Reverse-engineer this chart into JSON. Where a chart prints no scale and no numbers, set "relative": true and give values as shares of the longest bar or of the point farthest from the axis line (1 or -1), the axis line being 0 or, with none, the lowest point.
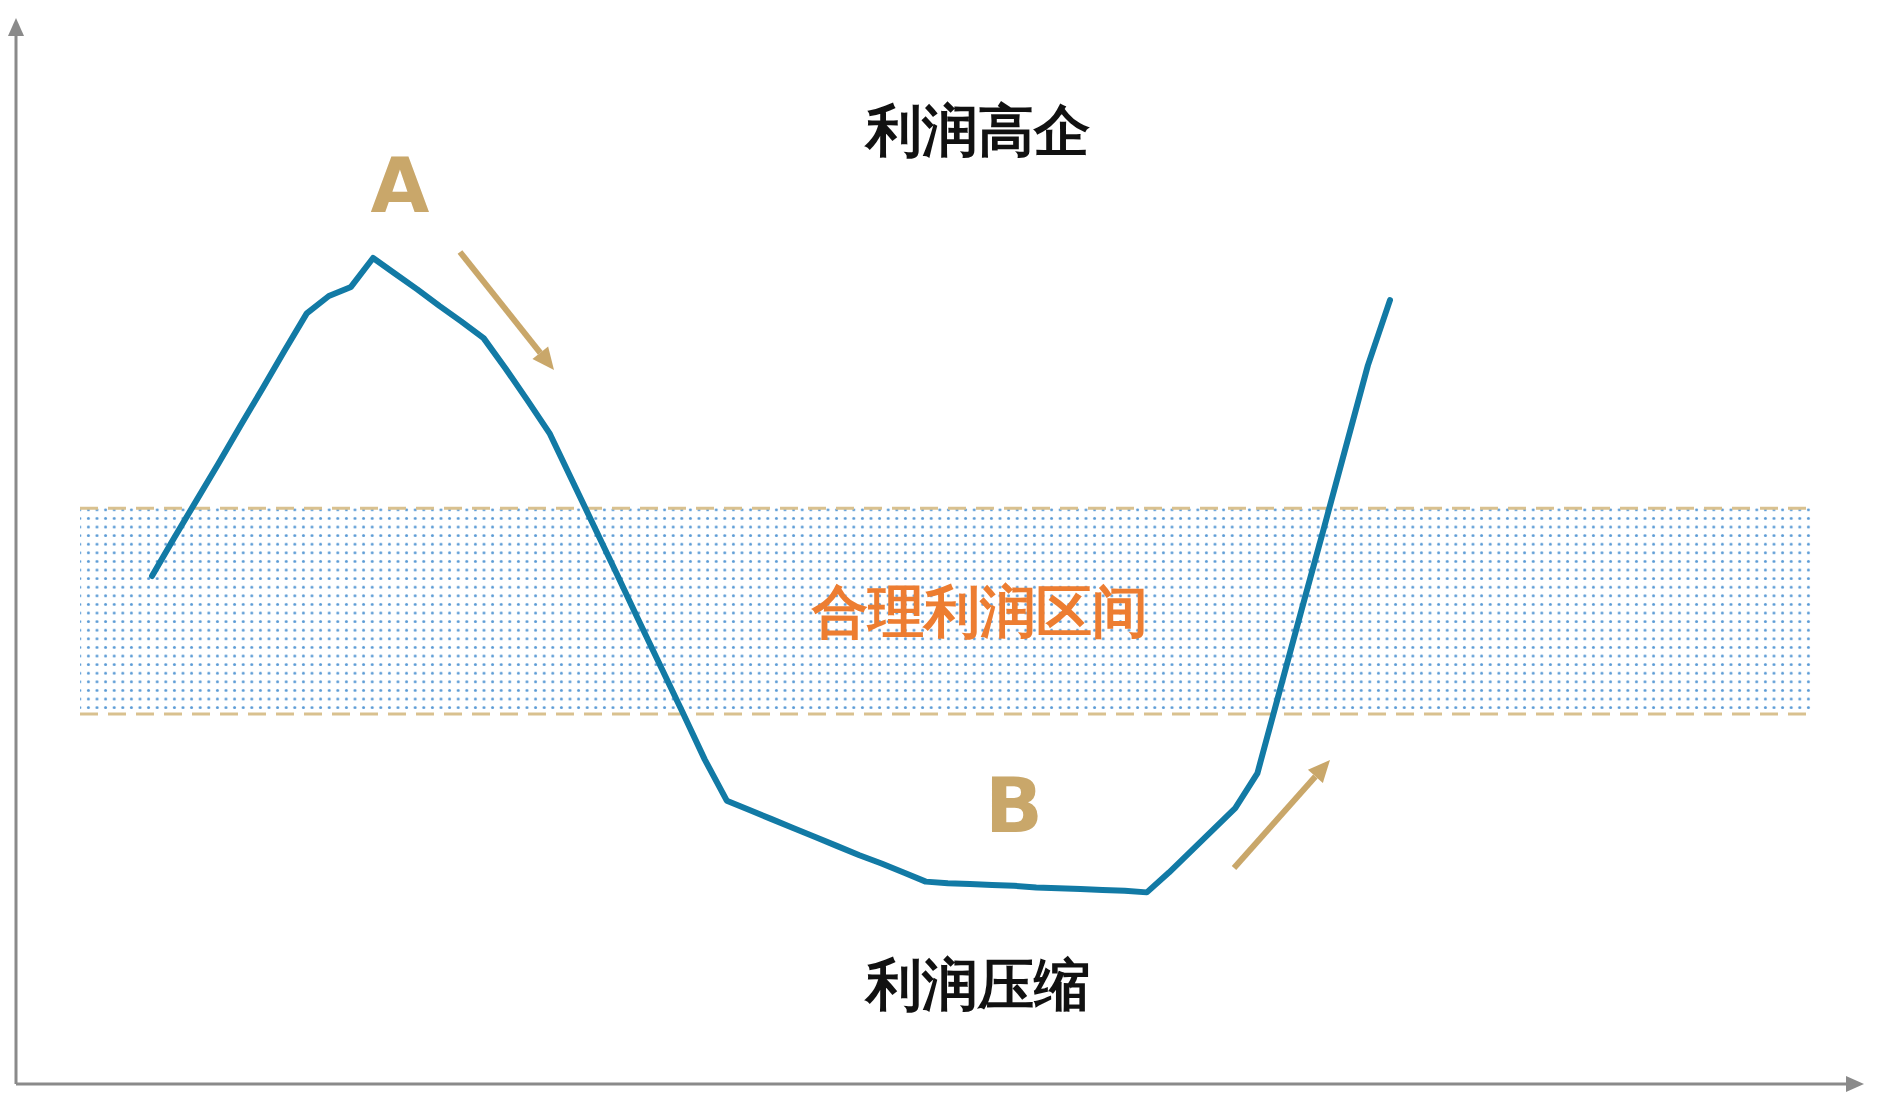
{
  "chart_data": {
    "type": "line",
    "relative": true,
    "categories": [
      null,
      null,
      null,
      null,
      null,
      null,
      null,
      null,
      null,
      null,
      null,
      null,
      null,
      null,
      null,
      null,
      null,
      null,
      null,
      null,
      null,
      null,
      null,
      null,
      null,
      null,
      null,
      null,
      null,
      null,
      null,
      null,
      null,
      null,
      null,
      null,
      null,
      null,
      null,
      null,
      null,
      null,
      null,
      null,
      null,
      null,
      null,
      null,
      null,
      null,
      null,
      null,
      null,
      null,
      null,
      null,
      null
    ],
    "series": [
      {
        "color": "#127aa5",
        "values": [
          0.615,
          0.661,
          0.706,
          0.751,
          0.797,
          0.842,
          0.888,
          0.933,
          0.954,
          0.965,
          1,
          0.981,
          0.962,
          0.942,
          0.923,
          0.903,
          0.866,
          0.827,
          0.787,
          0.731,
          0.675,
          0.619,
          0.562,
          0.506,
          0.45,
          0.393,
          0.343,
          0.332,
          0.321,
          0.31,
          0.299,
          0.288,
          0.277,
          0.267,
          0.256,
          0.245,
          0.243,
          0.242,
          0.241,
          0.24,
          0.238,
          0.237,
          0.236,
          0.235,
          0.234,
          0.232,
          0.256,
          0.282,
          0.308,
          0.334,
          0.376,
          0.475,
          0.574,
          0.672,
          0.771,
          0.87,
          0.949
        ]
      }
    ],
    "bands": [
      {
        "axis": "y",
        "from": 0.448,
        "to": 0.697,
        "label": "合理利润区间",
        "color": "#5b9bd5"
      }
    ],
    "ref_lines": [
      {
        "axis": "y",
        "value": 0.697,
        "color": "#d9c18f",
        "line_style": "dashed"
      },
      {
        "axis": "y",
        "value": 0.448,
        "color": "#d9c18f",
        "line_style": "dashed"
      }
    ],
    "annotations": [
      "利润高企",
      "A",
      "B",
      "利润压缩"
    ]
  }
}
